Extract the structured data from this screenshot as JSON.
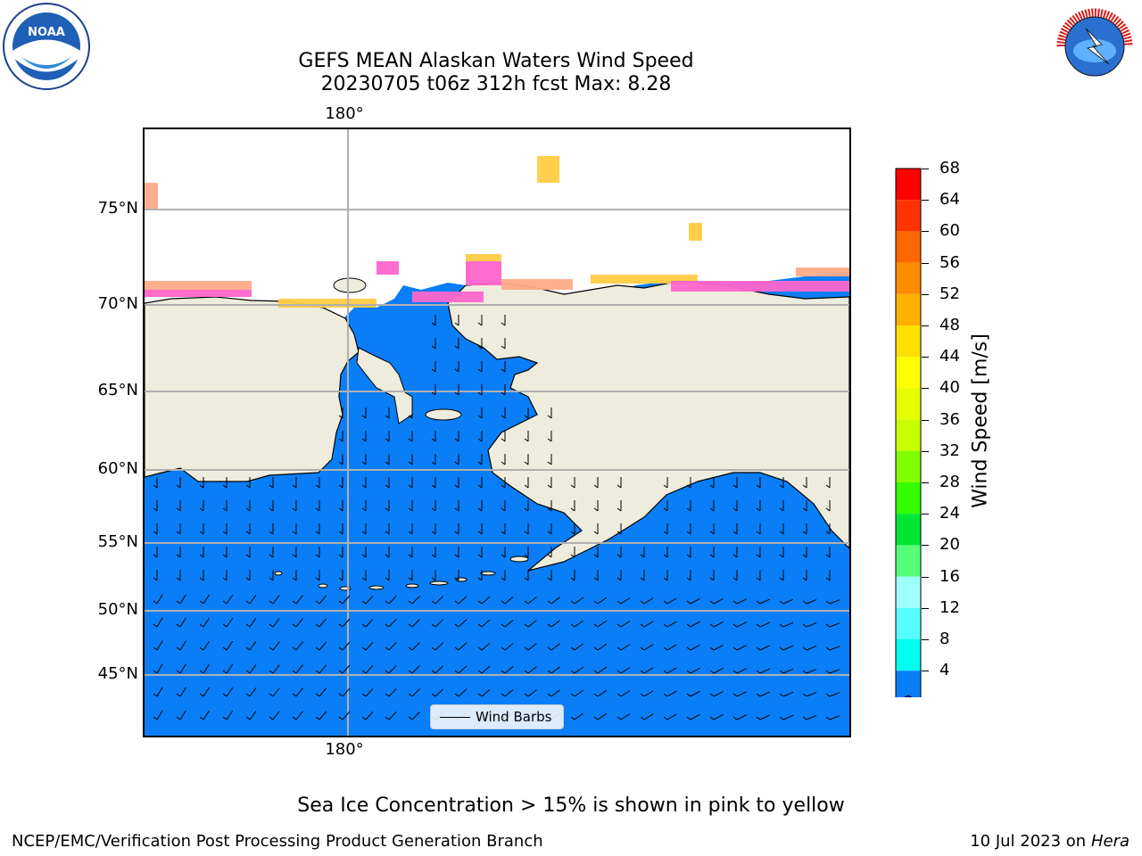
{
  "header": {
    "title_line1": "GEFS MEAN Alaskan Waters Wind Speed",
    "title_line2": "20230705 t06z 312h fcst   Max: 8.28",
    "left_logo_text": "NOAA",
    "right_logo_text": "NATIONAL WEATHER SERVICE"
  },
  "map": {
    "lat_labels": [
      "75°N",
      "70°N",
      "65°N",
      "60°N",
      "55°N",
      "50°N",
      "45°N"
    ],
    "lon_label_top": "180°",
    "lon_label_bottom": "180°",
    "ocean_color": "#0a7ef7",
    "land_color": "#eeecdc",
    "ice_colors": [
      "#ff66cc",
      "#ffaa88",
      "#ffcc44"
    ],
    "legend_label": "Wind Barbs"
  },
  "colorbar": {
    "title": "Wind Speed [m/s]",
    "ticks": [
      "68",
      "64",
      "60",
      "56",
      "52",
      "48",
      "44",
      "40",
      "36",
      "32",
      "28",
      "24",
      "20",
      "16",
      "12",
      "8",
      "4"
    ],
    "colors": [
      "#ff0000",
      "#ff3300",
      "#ff6600",
      "#ff8c00",
      "#ffb000",
      "#ffe000",
      "#ffff00",
      "#e6ff00",
      "#c8ff00",
      "#80ff00",
      "#33ff00",
      "#00e633",
      "#55ff77",
      "#a0ffff",
      "#55ffff",
      "#00ffee",
      "#0a7ef7"
    ],
    "under_color": "#0000ff"
  },
  "footer": {
    "caption": "Sea Ice Concentration > 15% is shown in pink to yellow",
    "left": "NCEP/EMC/Verification Post Processing Product Generation Branch",
    "right_date": "10 Jul 2023 on ",
    "right_host": "Hera"
  }
}
